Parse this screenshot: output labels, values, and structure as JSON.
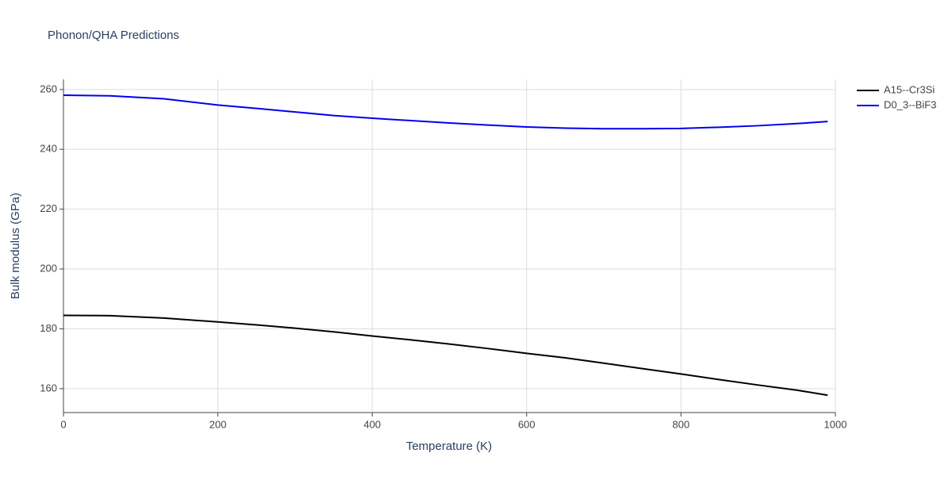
{
  "chart_data": {
    "type": "line",
    "title": "Phonon/QHA Predictions",
    "x_label": "Temperature (K)",
    "y_label": "Bulk modulus (GPa)",
    "x": [
      0,
      60,
      130,
      200,
      250,
      300,
      350,
      400,
      450,
      500,
      550,
      600,
      650,
      700,
      750,
      800,
      850,
      900,
      950,
      990
    ],
    "series": [
      {
        "name": "A15--Cr3Si",
        "color": "#000000",
        "values": [
          184.5,
          184.4,
          183.6,
          182.3,
          181.3,
          180.2,
          179.0,
          177.6,
          176.3,
          174.9,
          173.4,
          171.8,
          170.3,
          168.5,
          166.7,
          164.9,
          163.0,
          161.2,
          159.5,
          157.8
        ]
      },
      {
        "name": "D0_3--BiF3",
        "color": "#0000ee",
        "values": [
          258.1,
          257.9,
          256.9,
          254.8,
          253.7,
          252.5,
          251.3,
          250.4,
          249.6,
          248.8,
          248.1,
          247.5,
          247.1,
          246.9,
          246.9,
          247.0,
          247.4,
          247.9,
          248.6,
          249.3
        ]
      }
    ],
    "xlim": [
      0,
      1000
    ],
    "xticks": [
      0,
      200,
      400,
      600,
      800,
      1000
    ],
    "ylim": [
      152,
      263.4
    ],
    "yticks": [
      160,
      180,
      200,
      220,
      240,
      260
    ],
    "grid": true,
    "legend": "top-right"
  }
}
